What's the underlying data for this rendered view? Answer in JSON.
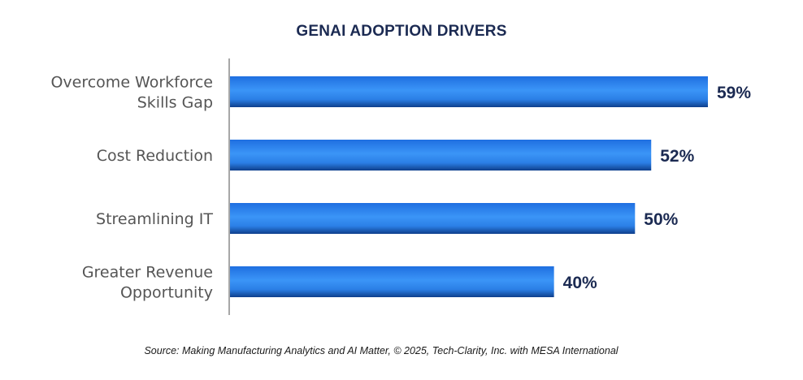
{
  "chart_data": {
    "type": "bar",
    "orientation": "horizontal",
    "title": "GENAI ADOPTION DRIVERS",
    "categories": [
      [
        "Overcome Workforce",
        "Skills Gap"
      ],
      [
        "Cost Reduction"
      ],
      [
        "Streamlining IT"
      ],
      [
        "Greater Revenue",
        "Opportunity"
      ]
    ],
    "values": [
      59,
      52,
      50,
      40
    ],
    "value_labels": [
      "59%",
      "52%",
      "50%",
      "40%"
    ],
    "xlim": [
      0,
      60
    ],
    "grid": false,
    "bar_color": "#2f86f0",
    "bar_color_dark": "#0e3f8c",
    "label_color": "#1b2a52"
  },
  "source": "Source: Making Manufacturing Analytics and AI Matter, © 2025, Tech-Clarity, Inc. with MESA International"
}
